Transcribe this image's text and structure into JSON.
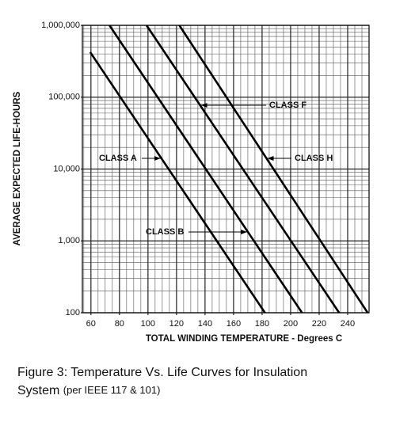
{
  "chart_data": {
    "type": "line",
    "xlabel": "TOTAL WINDING TEMPERATURE - Degrees C",
    "ylabel": "AVERAGE EXPECTED LIFE-HOURS",
    "xlim": [
      54,
      255
    ],
    "xticks": [
      60,
      80,
      100,
      120,
      140,
      160,
      180,
      200,
      220,
      240
    ],
    "ylim": [
      100,
      1000000
    ],
    "log_y": true,
    "yticks": [
      100,
      {
        "value": 1000,
        "label": "1,000"
      },
      {
        "value": 10000,
        "label": "10,000"
      },
      {
        "value": 100000,
        "label": "100,000"
      },
      {
        "value": 1000000,
        "label": "1,000,000"
      }
    ],
    "grid": true,
    "series": [
      {
        "name": "CLASS A",
        "color": "#000000",
        "x": [
          59.5,
          182
        ],
        "values": [
          423000,
          100
        ]
      },
      {
        "name": "CLASS B",
        "color": "#000000",
        "x": [
          73,
          208
        ],
        "values": [
          1000000,
          100
        ]
      },
      {
        "name": "CLASS F",
        "color": "#000000",
        "x": [
          99,
          234
        ],
        "values": [
          1000000,
          100
        ]
      },
      {
        "name": "CLASS H",
        "color": "#000000",
        "x": [
          122,
          254
        ],
        "values": [
          1000000,
          100
        ]
      }
    ]
  },
  "caption": [
    "Figure 3: Temperature Vs. Life Curves for Insulation",
    "System",
    "(per IEEE 117 & 101)"
  ]
}
